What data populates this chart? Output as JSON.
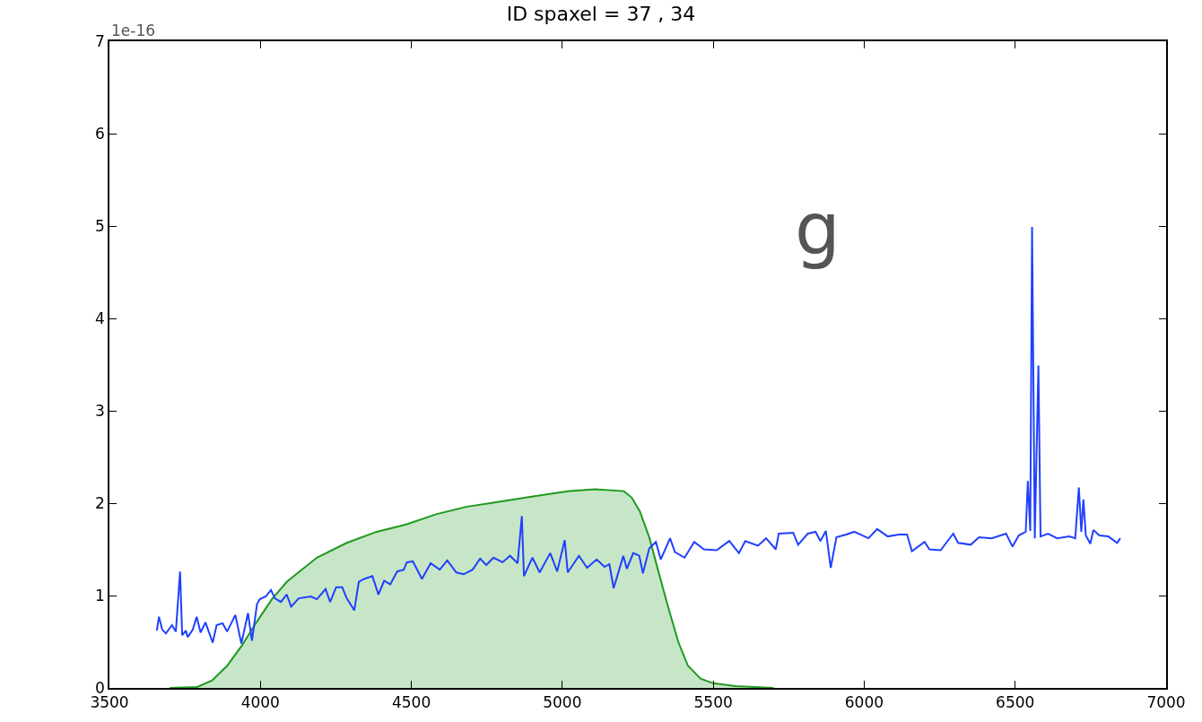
{
  "chart_data": {
    "type": "line",
    "title": "ID spaxel = 37 , 34",
    "annotations": [
      "1e-16",
      "g"
    ],
    "xlim": [
      3500,
      7000
    ],
    "xticks": [
      3500,
      4000,
      4500,
      5000,
      5500,
      6000,
      6500,
      7000
    ],
    "ylim": [
      0,
      7
    ],
    "yticks": [
      0,
      1,
      2,
      3,
      4,
      5,
      6,
      7
    ],
    "marker": "none",
    "line_style": "solid",
    "series": [
      {
        "type": "area",
        "color": "#1f9a1f",
        "x": [
          3700,
          3790,
          3840,
          3890,
          3939,
          3989,
          4038,
          4088,
          4187,
          4286,
          4385,
          4483,
          4582,
          4681,
          4780,
          4879,
          4977,
          5024,
          5109,
          5204,
          5230,
          5257,
          5289,
          5320,
          5352,
          5384,
          5416,
          5458,
          5500,
          5574,
          5700
        ],
        "values": [
          0,
          0.01,
          0.08,
          0.24,
          0.46,
          0.72,
          0.96,
          1.15,
          1.41,
          1.57,
          1.69,
          1.77,
          1.88,
          1.96,
          2.01,
          2.06,
          2.11,
          2.13,
          2.15,
          2.13,
          2.06,
          1.91,
          1.62,
          1.24,
          0.86,
          0.5,
          0.24,
          0.1,
          0.05,
          0.02,
          0
        ]
      },
      {
        "color": "#2040ff",
        "x": [
          3657,
          3664,
          3675,
          3687,
          3707,
          3720,
          3734,
          3741,
          3753,
          3759,
          3776,
          3789,
          3802,
          3818,
          3842,
          3855,
          3875,
          3890,
          3917,
          3937,
          3959,
          3972,
          3989,
          3998,
          4018,
          4035,
          4048,
          4068,
          4087,
          4102,
          4127,
          4167,
          4187,
          4216,
          4231,
          4251,
          4271,
          4286,
          4311,
          4326,
          4344,
          4371,
          4391,
          4410,
          4430,
          4453,
          4475,
          4485,
          4505,
          4535,
          4564,
          4594,
          4619,
          4649,
          4673,
          4703,
          4728,
          4748,
          4772,
          4802,
          4827,
          4852,
          4866,
          4873,
          4901,
          4925,
          4960,
          4983,
          5008,
          5018,
          5055,
          5082,
          5114,
          5140,
          5156,
          5170,
          5183,
          5202,
          5214,
          5235,
          5255,
          5267,
          5288,
          5310,
          5326,
          5357,
          5373,
          5405,
          5437,
          5469,
          5511,
          5553,
          5585,
          5606,
          5648,
          5675,
          5707,
          5717,
          5765,
          5781,
          5813,
          5839,
          5855,
          5873,
          5889,
          5908,
          5940,
          5967,
          6014,
          6043,
          6078,
          6115,
          6142,
          6158,
          6200,
          6216,
          6253,
          6295,
          6311,
          6353,
          6380,
          6422,
          6470,
          6491,
          6512,
          6535,
          6542,
          6550,
          6556,
          6565,
          6577,
          6584,
          6609,
          6639,
          6679,
          6699,
          6711,
          6719,
          6726,
          6734,
          6749,
          6759,
          6779,
          6808,
          6838,
          6848
        ],
        "values": [
          0.62,
          0.77,
          0.63,
          0.59,
          0.68,
          0.61,
          1.26,
          0.57,
          0.62,
          0.55,
          0.63,
          0.77,
          0.6,
          0.71,
          0.49,
          0.68,
          0.7,
          0.61,
          0.79,
          0.48,
          0.81,
          0.51,
          0.91,
          0.96,
          0.99,
          1.06,
          0.97,
          0.93,
          1.01,
          0.88,
          0.97,
          0.99,
          0.96,
          1.07,
          0.93,
          1.09,
          1.09,
          0.97,
          0.84,
          1.15,
          1.18,
          1.21,
          1.01,
          1.16,
          1.12,
          1.26,
          1.28,
          1.36,
          1.37,
          1.18,
          1.35,
          1.28,
          1.38,
          1.25,
          1.23,
          1.28,
          1.4,
          1.33,
          1.41,
          1.36,
          1.43,
          1.35,
          1.86,
          1.21,
          1.41,
          1.25,
          1.46,
          1.26,
          1.6,
          1.25,
          1.43,
          1.3,
          1.39,
          1.31,
          1.34,
          1.08,
          1.22,
          1.43,
          1.29,
          1.46,
          1.43,
          1.24,
          1.51,
          1.58,
          1.39,
          1.62,
          1.47,
          1.41,
          1.58,
          1.5,
          1.49,
          1.59,
          1.46,
          1.59,
          1.54,
          1.62,
          1.5,
          1.67,
          1.68,
          1.55,
          1.67,
          1.69,
          1.59,
          1.7,
          1.3,
          1.63,
          1.66,
          1.69,
          1.62,
          1.72,
          1.64,
          1.66,
          1.66,
          1.48,
          1.58,
          1.5,
          1.49,
          1.67,
          1.57,
          1.55,
          1.63,
          1.62,
          1.67,
          1.53,
          1.65,
          1.69,
          2.24,
          1.7,
          4.99,
          1.62,
          3.49,
          1.64,
          1.67,
          1.62,
          1.64,
          1.62,
          2.17,
          1.69,
          2.04,
          1.65,
          1.56,
          1.71,
          1.65,
          1.64,
          1.57,
          1.62
        ]
      }
    ]
  }
}
